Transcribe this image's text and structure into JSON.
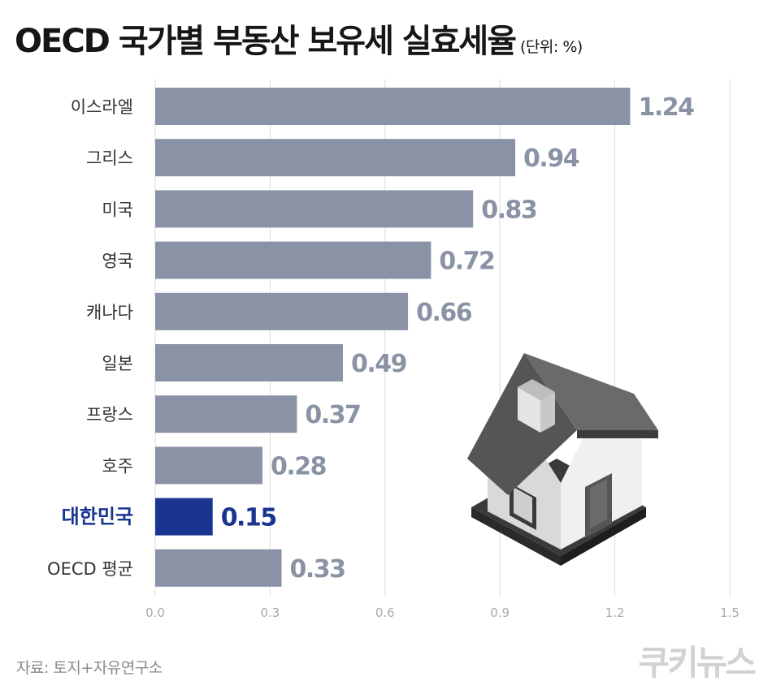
{
  "header": {
    "title": "OECD 국가별 부동산 보유세 실효세율",
    "unit": "(단위: %)"
  },
  "footer": {
    "source": "자료: 토지+자유연구소",
    "logo": "쿠키뉴스"
  },
  "colors": {
    "bar": "#8a93a6",
    "highlight": "#1a3591",
    "value_label": "#8a93a6",
    "category_label": "#333333",
    "grid": "#dcdcdc",
    "tick": "#aaaaaa"
  },
  "illustration": {
    "icon": "house-icon"
  },
  "chart_data": {
    "type": "bar",
    "orientation": "horizontal",
    "categories": [
      "이스라엘",
      "그리스",
      "미국",
      "영국",
      "캐나다",
      "일본",
      "프랑스",
      "호주",
      "대한민국",
      "OECD 평균"
    ],
    "values": [
      1.24,
      0.94,
      0.83,
      0.72,
      0.66,
      0.49,
      0.37,
      0.28,
      0.15,
      0.33
    ],
    "value_labels": [
      "1.24",
      "0.94",
      "0.83",
      "0.72",
      "0.66",
      "0.49",
      "0.37",
      "0.28",
      "0.15",
      "0.33"
    ],
    "highlight": "대한민국",
    "xlim": [
      0,
      1.5
    ],
    "xticks": [
      "0.0",
      "0.3",
      "0.6",
      "0.9",
      "1.2",
      "1.5"
    ],
    "grid": true
  }
}
